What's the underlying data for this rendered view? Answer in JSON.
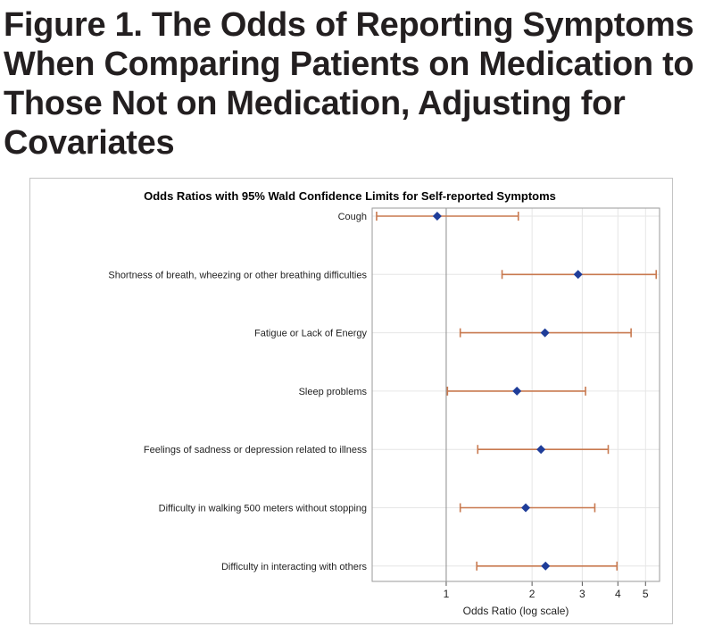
{
  "figure": {
    "title": "Figure 1. The Odds of Reporting Symptoms When Comparing Patients on Medication to Those Not on Medication, Adjusting for Covariates"
  },
  "colors": {
    "marker": "#1f3d99",
    "ci": "#c8794f",
    "refline": "#8c8c8c",
    "grid": "#e6e6e6",
    "frame": "#9a9a9a"
  },
  "chart_data": {
    "type": "scatter",
    "title": "Odds Ratios with 95% Wald Confidence Limits for Self-reported Symptoms",
    "xlabel": "Odds Ratio (log scale)",
    "xscale": "log",
    "xlim": [
      0.55,
      5.6
    ],
    "xticks": [
      1,
      2,
      3,
      4,
      5
    ],
    "reference_line": 1,
    "grid": true,
    "categories": [
      "Cough",
      "Shortness of breath, wheezing or other breathing difficulties",
      "Fatigue or Lack of Energy",
      "Sleep problems",
      "Feelings of sadness or depression related to illness",
      "Difficulty in walking 500 meters without stopping",
      "Difficulty in interacting with others"
    ],
    "series": [
      {
        "odds_ratio": [
          0.93,
          2.9,
          2.22,
          1.77,
          2.15,
          1.9,
          2.23
        ],
        "lower": [
          0.57,
          1.57,
          1.12,
          1.01,
          1.29,
          1.12,
          1.28
        ],
        "upper": [
          1.79,
          5.45,
          4.45,
          3.08,
          3.7,
          3.32,
          3.97
        ]
      }
    ]
  }
}
